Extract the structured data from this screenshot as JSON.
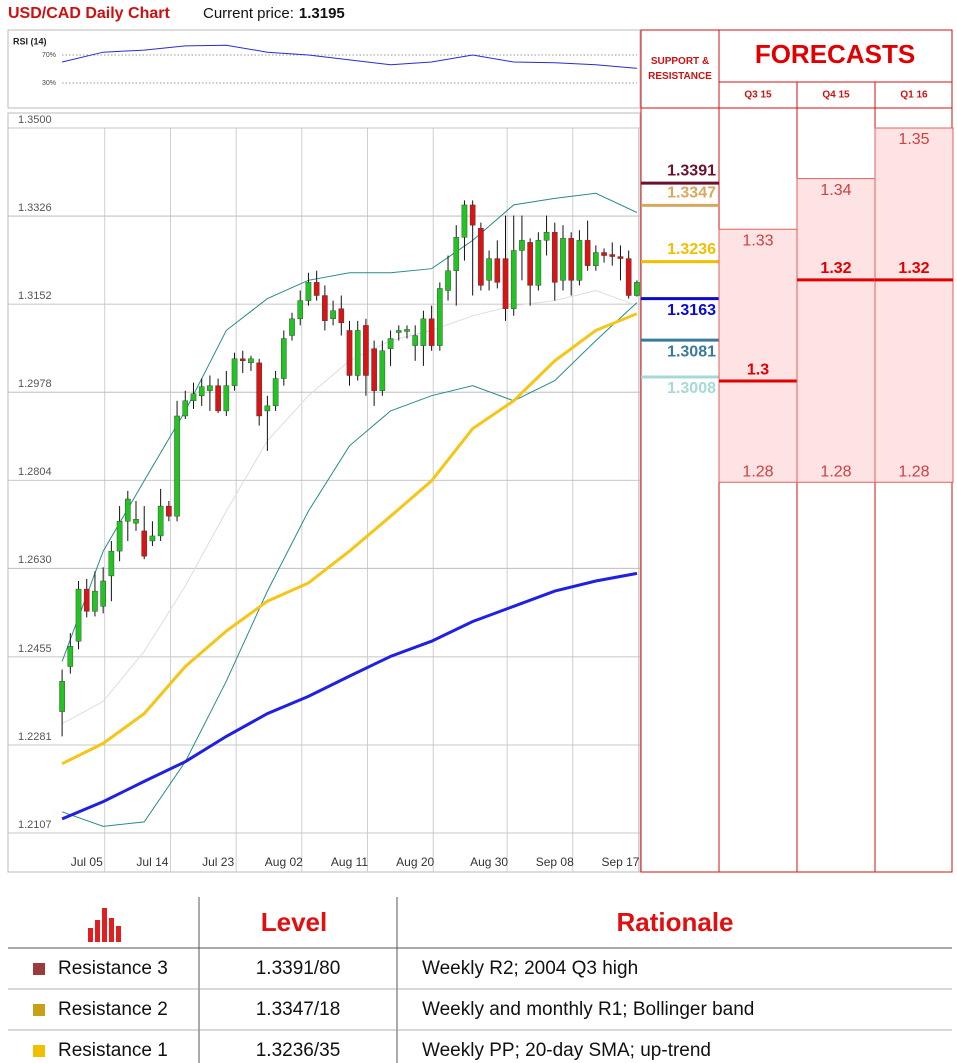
{
  "header": {
    "title": "USD/CAD Daily Chart",
    "price_label": "Current price:",
    "price": 1.3195
  },
  "chart_data": [
    {
      "type": "line",
      "title": "RSI (14)",
      "x": [
        0,
        5,
        10,
        15,
        20,
        25,
        30,
        35,
        40,
        45,
        50,
        55,
        60,
        65,
        70
      ],
      "values": [
        60,
        74,
        77,
        83,
        84,
        74,
        70,
        63,
        56,
        60,
        70,
        60,
        59,
        56,
        51
      ],
      "color": "#2b2bd0",
      "xlim": [
        -0.5,
        70.5
      ],
      "ylim": [
        0,
        100
      ],
      "yticks": [
        {
          "value": 70,
          "label": "70%"
        },
        {
          "value": 30,
          "label": "30%"
        }
      ]
    },
    {
      "type": "candlestick",
      "categories": [
        null,
        null,
        null,
        "Jul 05",
        null,
        null,
        null,
        null,
        null,
        null,
        null,
        "Jul 14",
        null,
        null,
        null,
        null,
        null,
        null,
        null,
        "Jul 23",
        null,
        null,
        null,
        null,
        null,
        null,
        null,
        "Aug 02",
        null,
        null,
        null,
        null,
        null,
        null,
        null,
        "Aug 11",
        null,
        null,
        null,
        null,
        null,
        null,
        null,
        "Aug 20",
        null,
        null,
        null,
        null,
        null,
        null,
        null,
        null,
        "Aug 30",
        null,
        null,
        null,
        null,
        null,
        null,
        null,
        "Sep 08",
        null,
        null,
        null,
        null,
        null,
        null,
        null,
        "Sep 17",
        null,
        null
      ],
      "open": [
        1.2347,
        1.2436,
        1.2486,
        1.2589,
        1.2545,
        1.2555,
        1.2615,
        1.2664,
        1.2723,
        1.2719,
        1.2704,
        1.2684,
        1.2694,
        1.2753,
        1.2733,
        1.2931,
        1.2961,
        1.2971,
        1.2981,
        1.2991,
        1.2941,
        1.2991,
        1.3044,
        1.3036,
        1.3036,
        1.2941,
        1.2951,
        1.3005,
        1.309,
        1.3123,
        1.3159,
        1.3195,
        1.3169,
        1.3123,
        1.3143,
        1.31,
        1.3011,
        1.311,
        1.3064,
        1.2981,
        1.3064,
        1.3096,
        1.3098,
        1.307,
        1.307,
        1.3123,
        1.307,
        1.3179,
        1.3218,
        1.3284,
        1.3348,
        1.3302,
        1.3199,
        1.3242,
        1.3242,
        1.3143,
        1.3258,
        1.3274,
        1.3189,
        1.3278,
        1.3294,
        1.3199,
        1.3282,
        1.3199,
        1.3278,
        1.3228,
        1.3254,
        1.325,
        1.3246,
        1.3242,
        1.3169
      ],
      "high": [
        1.243,
        1.2502,
        1.2605,
        1.2609,
        1.2624,
        1.2632,
        1.2684,
        1.2753,
        1.2783,
        1.2763,
        1.2753,
        1.2723,
        1.2787,
        1.2763,
        1.2961,
        1.2981,
        1.2997,
        1.3005,
        1.3011,
        1.3005,
        1.302,
        1.3056,
        1.306,
        1.305,
        1.3044,
        1.2971,
        1.302,
        1.31,
        1.3135,
        1.3179,
        1.3214,
        1.3218,
        1.3189,
        1.3159,
        1.3169,
        1.3119,
        1.3119,
        1.3123,
        1.308,
        1.308,
        1.31,
        1.311,
        1.311,
        1.311,
        1.3139,
        1.3149,
        1.3195,
        1.3248,
        1.3308,
        1.3357,
        1.3357,
        1.3313,
        1.3258,
        1.3278,
        1.3327,
        1.3327,
        1.3327,
        1.3282,
        1.3294,
        1.3327,
        1.3313,
        1.3308,
        1.3294,
        1.3298,
        1.3317,
        1.3268,
        1.3262,
        1.3274,
        1.3268,
        1.3258,
        1.3199
      ],
      "low": [
        1.2298,
        1.2422,
        1.247,
        1.2533,
        1.2535,
        1.2541,
        1.2565,
        1.2644,
        1.2684,
        1.2704,
        1.2648,
        1.2674,
        1.2684,
        1.2723,
        1.2723,
        1.2925,
        1.2945,
        1.2951,
        1.2941,
        1.2937,
        1.2931,
        1.2981,
        1.3016,
        1.302,
        1.2912,
        1.2862,
        1.2941,
        1.2991,
        1.308,
        1.311,
        1.3149,
        1.3159,
        1.31,
        1.311,
        1.309,
        1.2991,
        1.3001,
        1.2971,
        1.2951,
        1.2971,
        1.303,
        1.308,
        1.3084,
        1.304,
        1.303,
        1.306,
        1.306,
        1.3159,
        1.3149,
        1.3238,
        1.3169,
        1.3179,
        1.3179,
        1.3183,
        1.3119,
        1.3129,
        1.3199,
        1.3149,
        1.3179,
        1.3248,
        1.3159,
        1.3179,
        1.3169,
        1.3189,
        1.3218,
        1.3218,
        1.3234,
        1.3228,
        1.3199,
        1.3163,
        1.3167
      ],
      "close": [
        1.2407,
        1.2476,
        1.2589,
        1.2545,
        1.2585,
        1.2605,
        1.2664,
        1.2723,
        1.2767,
        1.2727,
        1.2654,
        1.2694,
        1.2753,
        1.2733,
        1.2931,
        1.2961,
        1.2975,
        1.2989,
        1.2991,
        1.2941,
        1.2991,
        1.3044,
        1.304,
        1.3044,
        1.2931,
        1.2951,
        1.3005,
        1.3084,
        1.3123,
        1.3159,
        1.3195,
        1.3169,
        1.3119,
        1.3139,
        1.3115,
        1.3011,
        1.31,
        1.3011,
        1.2981,
        1.306,
        1.3084,
        1.31,
        1.3102,
        1.309,
        1.3123,
        1.307,
        1.3183,
        1.3218,
        1.3284,
        1.3348,
        1.3308,
        1.3189,
        1.3242,
        1.3195,
        1.3143,
        1.3258,
        1.3278,
        1.3189,
        1.3278,
        1.3294,
        1.3195,
        1.3282,
        1.3199,
        1.3278,
        1.3228,
        1.3254,
        1.3248,
        1.3246,
        1.3242,
        1.3169,
        1.3195
      ],
      "up_color": "#22c322",
      "down_color": "#d81414",
      "wick_color": "#111111",
      "series": [
        {
          "color": "#dddddd",
          "width": 1,
          "x": [
            0,
            5,
            10,
            15,
            20,
            25,
            30,
            35,
            40,
            45,
            50,
            55,
            60,
            65,
            70
          ],
          "values": [
            1.2323,
            1.2367,
            1.2466,
            1.2595,
            1.2743,
            1.2882,
            1.2971,
            1.304,
            1.308,
            1.31,
            1.3129,
            1.3149,
            1.3159,
            1.3179,
            1.3149
          ]
        },
        {
          "color": "#2a8a8a",
          "width": 1,
          "x": [
            0,
            5,
            10,
            15,
            20,
            25,
            30,
            35,
            40,
            45,
            50,
            55,
            60,
            65,
            70
          ],
          "values": [
            1.2446,
            1.2664,
            1.2803,
            1.2941,
            1.31,
            1.3163,
            1.3199,
            1.3214,
            1.3214,
            1.3222,
            1.3278,
            1.3348,
            1.3361,
            1.3371,
            1.3333
          ]
        },
        {
          "color": "#2a8a8a",
          "width": 1,
          "x": [
            0,
            5,
            10,
            15,
            20,
            25,
            30,
            35,
            40,
            45,
            50,
            55,
            60,
            65,
            70
          ],
          "values": [
            1.2149,
            1.212,
            1.2129,
            1.2248,
            1.2407,
            1.2585,
            1.2743,
            1.2872,
            1.2941,
            1.2971,
            1.2991,
            1.2961,
            1.3001,
            1.308,
            1.3155
          ]
        },
        {
          "color": "#f5c518",
          "width": 3,
          "x": [
            0,
            5,
            10,
            15,
            20,
            25,
            30,
            35,
            40,
            45,
            50,
            55,
            60,
            65,
            70
          ],
          "values": [
            1.2244,
            1.2284,
            1.2343,
            1.2436,
            1.2506,
            1.2565,
            1.2601,
            1.2664,
            1.2733,
            1.2803,
            1.2906,
            1.2961,
            1.304,
            1.31,
            1.3133
          ]
        },
        {
          "color": "#2020e0",
          "width": 3,
          "x": [
            0,
            5,
            10,
            15,
            20,
            25,
            30,
            35,
            40,
            45,
            50,
            55,
            60,
            65,
            70
          ],
          "values": [
            1.2135,
            1.2169,
            1.2209,
            1.2248,
            1.2298,
            1.2343,
            1.2377,
            1.2417,
            1.2456,
            1.2486,
            1.2525,
            1.2555,
            1.2585,
            1.2605,
            1.262
          ]
        }
      ],
      "ylim": [
        1.203,
        1.35
      ],
      "yticks": [
        1.2107,
        1.2281,
        1.2455,
        {
          "value": 1.263,
          "label": "1.2630"
        },
        1.2804,
        1.2978,
        1.3152,
        1.3326,
        {
          "value": 1.35,
          "label": "1.3500"
        }
      ],
      "grid": true
    }
  ],
  "forecasts": {
    "title": "FORECASTS",
    "support_resistance_title": "SUPPORT & RESISTANCE",
    "levels": [
      {
        "value": 1.3391,
        "color": "#6b1030"
      },
      {
        "value": 1.3347,
        "color": "#d8a860"
      },
      {
        "value": 1.3236,
        "color": "#f0c000"
      },
      {
        "value": 1.3163,
        "color": "#0a0ad0"
      },
      {
        "value": 1.3081,
        "color": "#3a7a9a"
      },
      {
        "value": 1.3008,
        "color": "#a8d8d8"
      }
    ],
    "quarters": [
      {
        "label": "Q3 15",
        "high": 1.33,
        "target": 1.3,
        "low": 1.28
      },
      {
        "label": "Q4 15",
        "high": 1.34,
        "target": 1.32,
        "low": 1.28
      },
      {
        "label": "Q1 16",
        "high": 1.35,
        "target": 1.32,
        "low": 1.28
      }
    ]
  },
  "table": {
    "header": [
      "Level",
      "Rationale"
    ],
    "rows": [
      {
        "label": "Resistance 3",
        "level": "1.3391/80",
        "rationale": "Weekly R2; 2004 Q3 high",
        "color": "#9b3a3a"
      },
      {
        "label": "Resistance 2",
        "level": "1.3347/18",
        "rationale": "Weekly and monthly R1; Bollinger band",
        "color": "#c8a018"
      },
      {
        "label": "Resistance 1",
        "level": "1.3236/35",
        "rationale": "Weekly PP; 20-day SMA; up-trend",
        "color": "#f0c000"
      }
    ]
  }
}
